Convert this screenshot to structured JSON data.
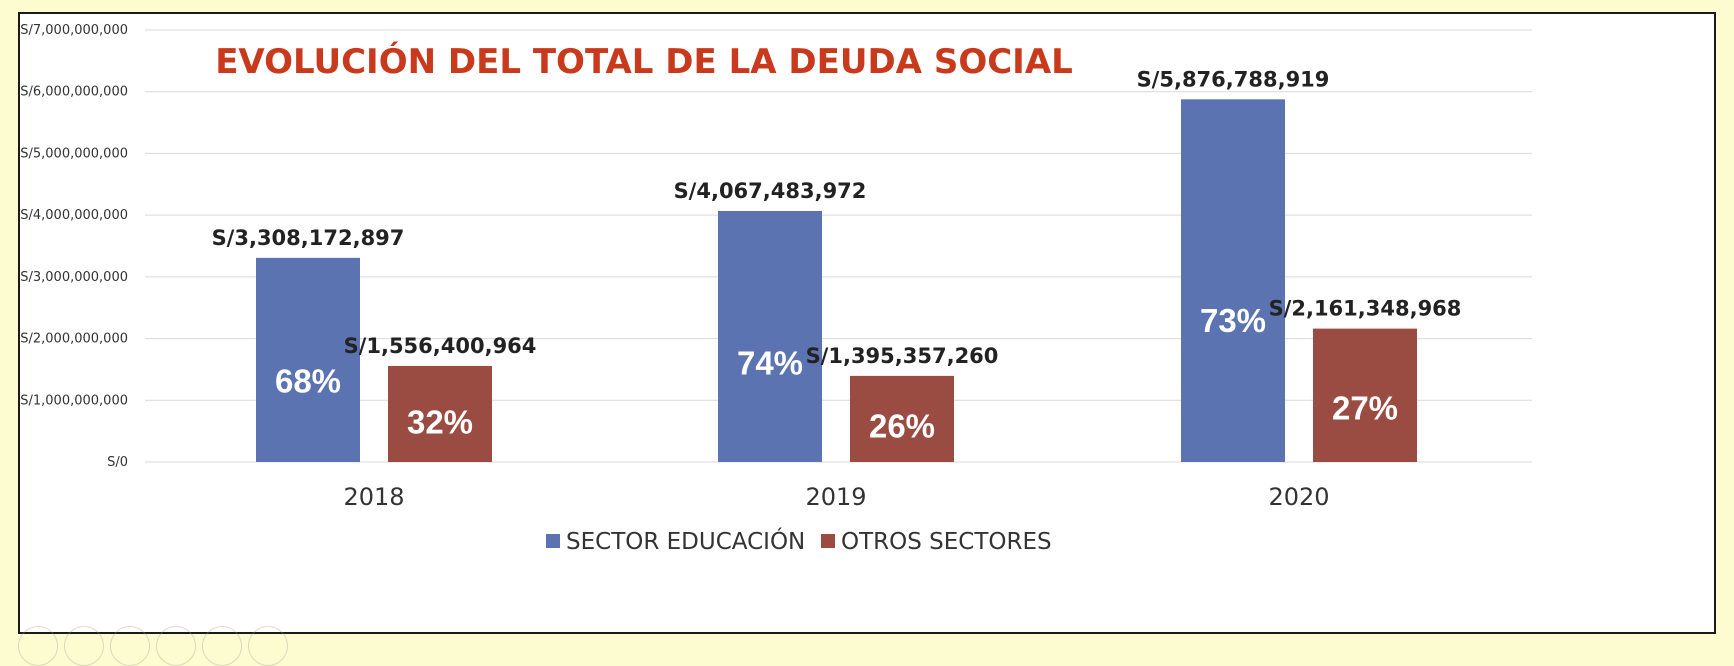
{
  "colors": {
    "education": "#5b74b1",
    "others": "#9a4c43",
    "title": "#c9391c",
    "grid": "#d9d9d9"
  },
  "chart_data": {
    "type": "bar",
    "title": "EVOLUCIÓN DEL TOTAL DE LA DEUDA SOCIAL",
    "xlabel": "",
    "ylabel": "",
    "ylim": [
      0,
      7000000000
    ],
    "y_ticks": [
      {
        "value": 0,
        "label": "S/0"
      },
      {
        "value": 1000000000,
        "label": "S/1,000,000,000"
      },
      {
        "value": 2000000000,
        "label": "S/2,000,000,000"
      },
      {
        "value": 3000000000,
        "label": "S/3,000,000,000"
      },
      {
        "value": 4000000000,
        "label": "S/4,000,000,000"
      },
      {
        "value": 5000000000,
        "label": "S/5,000,000,000"
      },
      {
        "value": 6000000000,
        "label": "S/6,000,000,000"
      },
      {
        "value": 7000000000,
        "label": "S/7,000,000,000"
      }
    ],
    "categories": [
      "2018",
      "2019",
      "2020"
    ],
    "series": [
      {
        "name": "SECTOR EDUCACIÓN",
        "values": [
          3308172897,
          4067483972,
          5876788919
        ],
        "value_labels": [
          "S/3,308,172,897",
          "S/4,067,483,972",
          "S/5,876,788,919"
        ],
        "pct_labels": [
          "68%",
          "74%",
          "73%"
        ]
      },
      {
        "name": "OTROS SECTORES",
        "values": [
          1556400964,
          1395357260,
          2161348968
        ],
        "value_labels": [
          "S/1,556,400,964",
          "S/1,395,357,260",
          "S/2,161,348,968"
        ],
        "pct_labels": [
          "32%",
          "26%",
          "27%"
        ]
      }
    ],
    "legend_position": "bottom-center",
    "grid": true
  }
}
